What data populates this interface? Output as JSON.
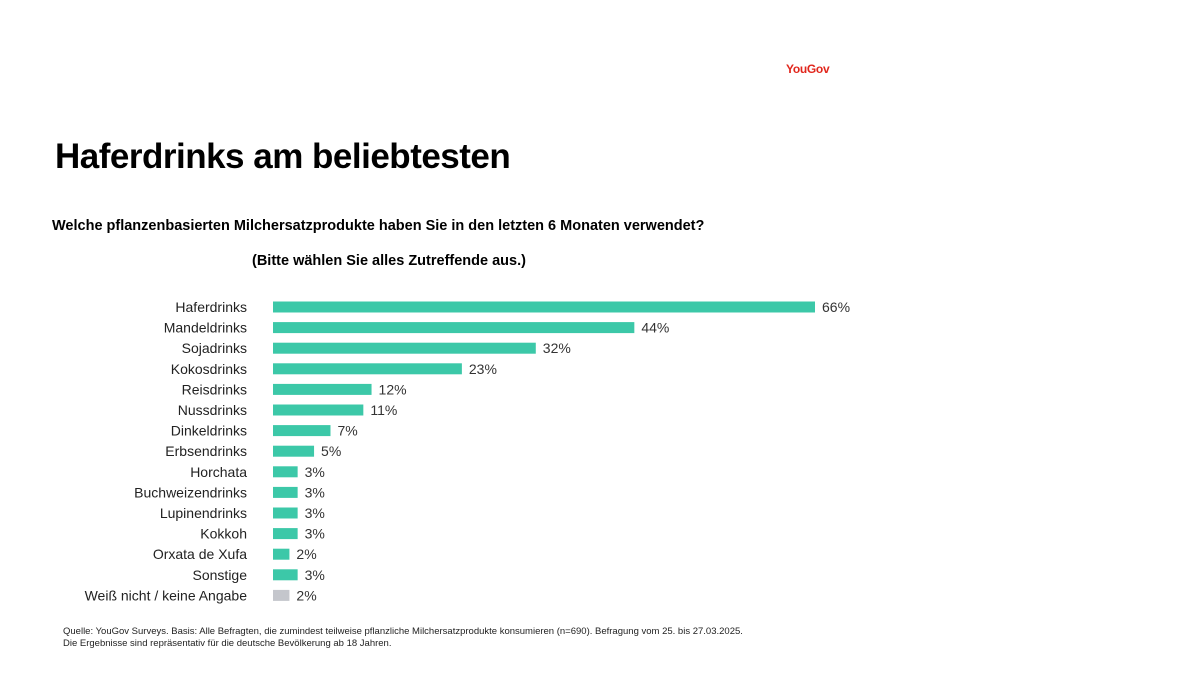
{
  "brand": {
    "logo_text": "YouGov",
    "logo_color": "#e1261c"
  },
  "header": {
    "title": "Haferdrinks am beliebtesten",
    "question": "Welche pflanzenbasierten Milchersatzprodukte haben Sie in den letzten 6 Monaten verwendet?",
    "instruction": "(Bitte wählen Sie alles Zutreffende aus.)"
  },
  "chart_data": {
    "type": "bar",
    "orientation": "horizontal",
    "title": "Haferdrinks am beliebtesten",
    "xlabel": "",
    "ylabel": "",
    "xlim": [
      0,
      66
    ],
    "unit": "%",
    "grid": false,
    "legend": "none",
    "categories": [
      "Haferdrinks",
      "Mandeldrinks",
      "Sojadrinks",
      "Kokosdrinks",
      "Reisdrinks",
      "Nussdrinks",
      "Dinkeldrinks",
      "Erbsendrinks",
      "Horchata",
      "Buchweizendrinks",
      "Lupinendrinks",
      "Kokkoh",
      "Orxata de Xufa",
      "Sonstige",
      "Weiß nicht / keine Angabe"
    ],
    "values": [
      66,
      44,
      32,
      23,
      12,
      11,
      7,
      5,
      3,
      3,
      3,
      3,
      2,
      3,
      2
    ],
    "value_labels": [
      "66%",
      "44%",
      "32%",
      "23%",
      "12%",
      "11%",
      "7%",
      "5%",
      "3%",
      "3%",
      "3%",
      "3%",
      "2%",
      "3%",
      "2%"
    ],
    "bar_colors": [
      "#3cc8a8",
      "#3cc8a8",
      "#3cc8a8",
      "#3cc8a8",
      "#3cc8a8",
      "#3cc8a8",
      "#3cc8a8",
      "#3cc8a8",
      "#3cc8a8",
      "#3cc8a8",
      "#3cc8a8",
      "#3cc8a8",
      "#3cc8a8",
      "#3cc8a8",
      "#c4c6cc"
    ]
  },
  "footer": {
    "source_line1": "Quelle: YouGov Surveys. Basis: Alle Befragten, die zumindest teilweise pflanzliche Milchersatzprodukte konsumieren (n=690). Befragung vom 25. bis 27.03.2025.",
    "source_line2": "Die Ergebnisse sind repräsentativ für die deutsche Bevölkerung ab 18 Jahren."
  }
}
